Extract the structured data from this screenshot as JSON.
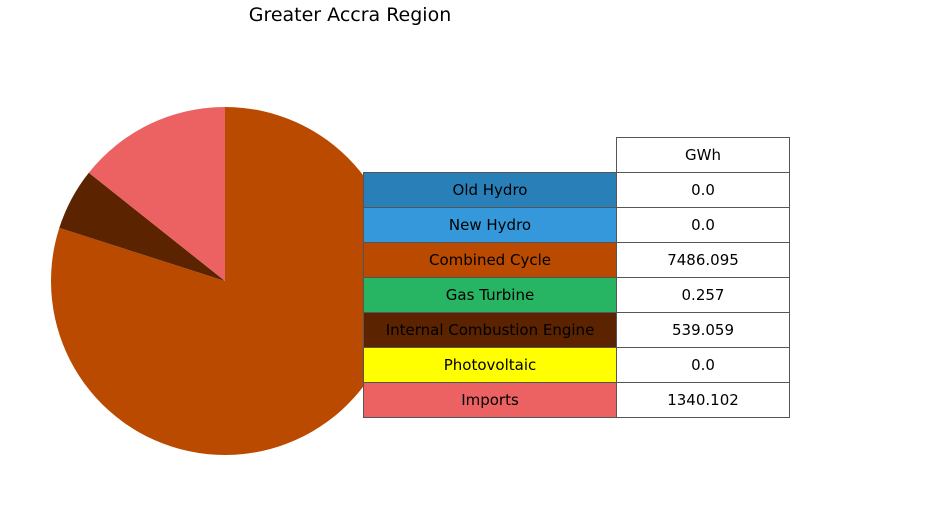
{
  "chart_data": {
    "type": "pie",
    "title": "Greater Accra Region",
    "column_header": "GWh",
    "start_angle_deg": 90,
    "direction": "clockwise-from-top",
    "slices": [
      {
        "label": "Old Hydro",
        "display": "0.0",
        "value": 0.0,
        "color": "#2980b9"
      },
      {
        "label": "New Hydro",
        "display": "0.0",
        "value": 0.0,
        "color": "#3498db"
      },
      {
        "label": "Combined Cycle",
        "display": "7486.095",
        "value": 7486.095,
        "color": "#ba4a00"
      },
      {
        "label": "Gas Turbine",
        "display": "0.257",
        "value": 0.257,
        "color": "#27b463"
      },
      {
        "label": "Internal Combustion Engine",
        "display": "539.059",
        "value": 539.059,
        "color": "#5b2300"
      },
      {
        "label": "Photovoltaic",
        "display": "0.0",
        "value": 0.0,
        "color": "#ffff00"
      },
      {
        "label": "Imports",
        "display": "1340.102",
        "value": 1340.102,
        "color": "#ec6262"
      }
    ]
  }
}
